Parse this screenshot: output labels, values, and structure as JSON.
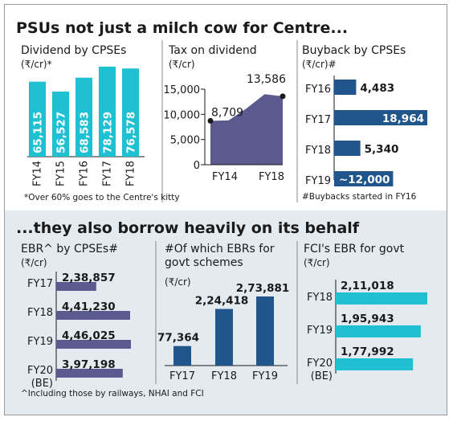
{
  "title_top": "PSUs not just a milch cow for Centre...",
  "title_bottom": "...they also borrow heavily on its behalf",
  "colors": {
    "cyan": "#1fc0d2",
    "navy": "#21568c",
    "purple": "#5b5a8e",
    "panel": "#e3ebf1"
  },
  "chart_data": [
    {
      "type": "bar",
      "title": "Dividend by CPSEs",
      "unit": "(₹/cr)*",
      "categories": [
        "FY14",
        "FY15",
        "FY16",
        "FY17",
        "FY18"
      ],
      "value_labels": [
        "65,115",
        "56,527",
        "68,583",
        "78,129",
        "76,578"
      ],
      "values": [
        65115,
        56527,
        68583,
        78129,
        76578
      ],
      "note": "*Over 60% goes to  the Centre's kitty"
    },
    {
      "type": "area",
      "title": "Tax on dividend",
      "unit": "(₹/cr)",
      "x": [
        "FY14",
        "FY15",
        "FY16",
        "FY17",
        "FY18"
      ],
      "x_tick_labels": [
        "FY14",
        "FY18"
      ],
      "values": [
        8709,
        8800,
        11200,
        14000,
        13586
      ],
      "labeled_points": [
        {
          "label": "8,709",
          "index": 0
        },
        {
          "label": "13,586",
          "index": 4
        }
      ],
      "y_ticks": [
        "15,000",
        "10,000",
        "5,000",
        "0"
      ],
      "ylim": [
        0,
        15000
      ]
    },
    {
      "type": "bar",
      "orientation": "horizontal",
      "title": "Buyback by CPSEs",
      "unit": "(₹/cr)#",
      "categories": [
        "FY16",
        "FY17",
        "FY18",
        "FY19"
      ],
      "value_labels": [
        "4,483",
        "18,964",
        "5,340",
        "~12,000"
      ],
      "values": [
        4483,
        18964,
        5340,
        12000
      ],
      "note": "#Buybacks started in FY16"
    },
    {
      "type": "bar",
      "orientation": "horizontal",
      "title": "EBR^ by CPSEs#",
      "unit": "(₹/cr)",
      "categories": [
        "FY17",
        "FY18",
        "FY19",
        "FY20\n(BE)"
      ],
      "category_lines": [
        [
          "FY17"
        ],
        [
          "FY18"
        ],
        [
          "FY19"
        ],
        [
          "FY20",
          "(BE)"
        ]
      ],
      "value_labels": [
        "2,38,857",
        "4,41,230",
        "4,46,025",
        "3,97,198"
      ],
      "values": [
        238857,
        441230,
        446025,
        397198
      ],
      "note": "^Including those by railways, NHAI and FCI"
    },
    {
      "type": "bar",
      "title_lines": [
        "#Of which EBRs for",
        "govt schemes"
      ],
      "unit": "(₹/cr)",
      "categories": [
        "FY17",
        "FY18",
        "FY19"
      ],
      "value_labels": [
        "77,364",
        "2,24,418",
        "2,73,881"
      ],
      "values": [
        77364,
        224418,
        273881
      ]
    },
    {
      "type": "bar",
      "orientation": "horizontal",
      "title": "FCI's EBR for govt",
      "unit": "(₹/cr)",
      "categories": [
        "FY18",
        "FY19",
        "FY20\n(BE)"
      ],
      "category_lines": [
        [
          "FY18"
        ],
        [
          "FY19"
        ],
        [
          "FY20",
          "(BE)"
        ]
      ],
      "value_labels": [
        "2,11,018",
        "1,95,943",
        "1,77,992"
      ],
      "values": [
        211018,
        195943,
        177992
      ]
    }
  ]
}
